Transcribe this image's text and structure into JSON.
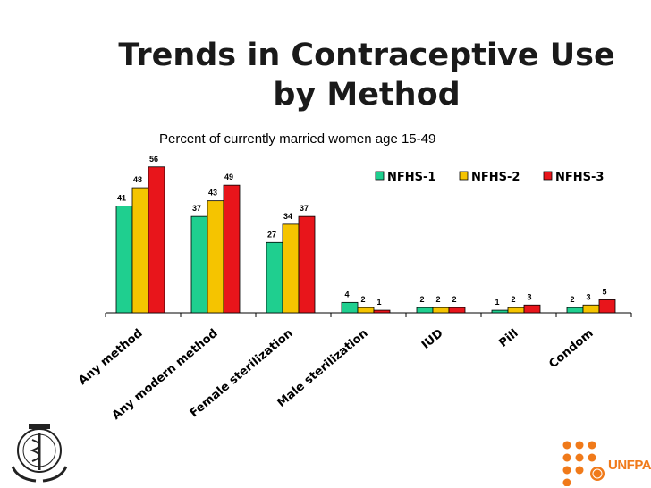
{
  "slide": {
    "title_line1": "Trends in Contraceptive Use",
    "title_line2": "by Method",
    "subtitle": "Percent of currently married women age 15-49"
  },
  "logos": {
    "right_text": "UNFPA",
    "accent_color": "#f07a1a"
  },
  "chart_data": {
    "type": "bar",
    "title": "Trends in Contraceptive Use by Method",
    "subtitle": "Percent of currently married women age 15-49",
    "categories": [
      "Any method",
      "Any modern method",
      "Female sterilization",
      "Male sterilization",
      "IUD",
      "Pill",
      "Condom"
    ],
    "series": [
      {
        "name": "NFHS-1",
        "color": "#1fcf8f",
        "values": [
          41,
          37,
          27,
          4,
          2,
          1,
          2
        ]
      },
      {
        "name": "NFHS-2",
        "color": "#f5c400",
        "values": [
          48,
          43,
          34,
          2,
          2,
          2,
          3
        ]
      },
      {
        "name": "NFHS-3",
        "color": "#e8151b",
        "values": [
          56,
          49,
          37,
          1,
          2,
          3,
          5
        ]
      }
    ],
    "ylim": [
      0,
      60
    ],
    "xlabel": "",
    "ylabel": "",
    "grid": false,
    "legend": "top-right"
  }
}
